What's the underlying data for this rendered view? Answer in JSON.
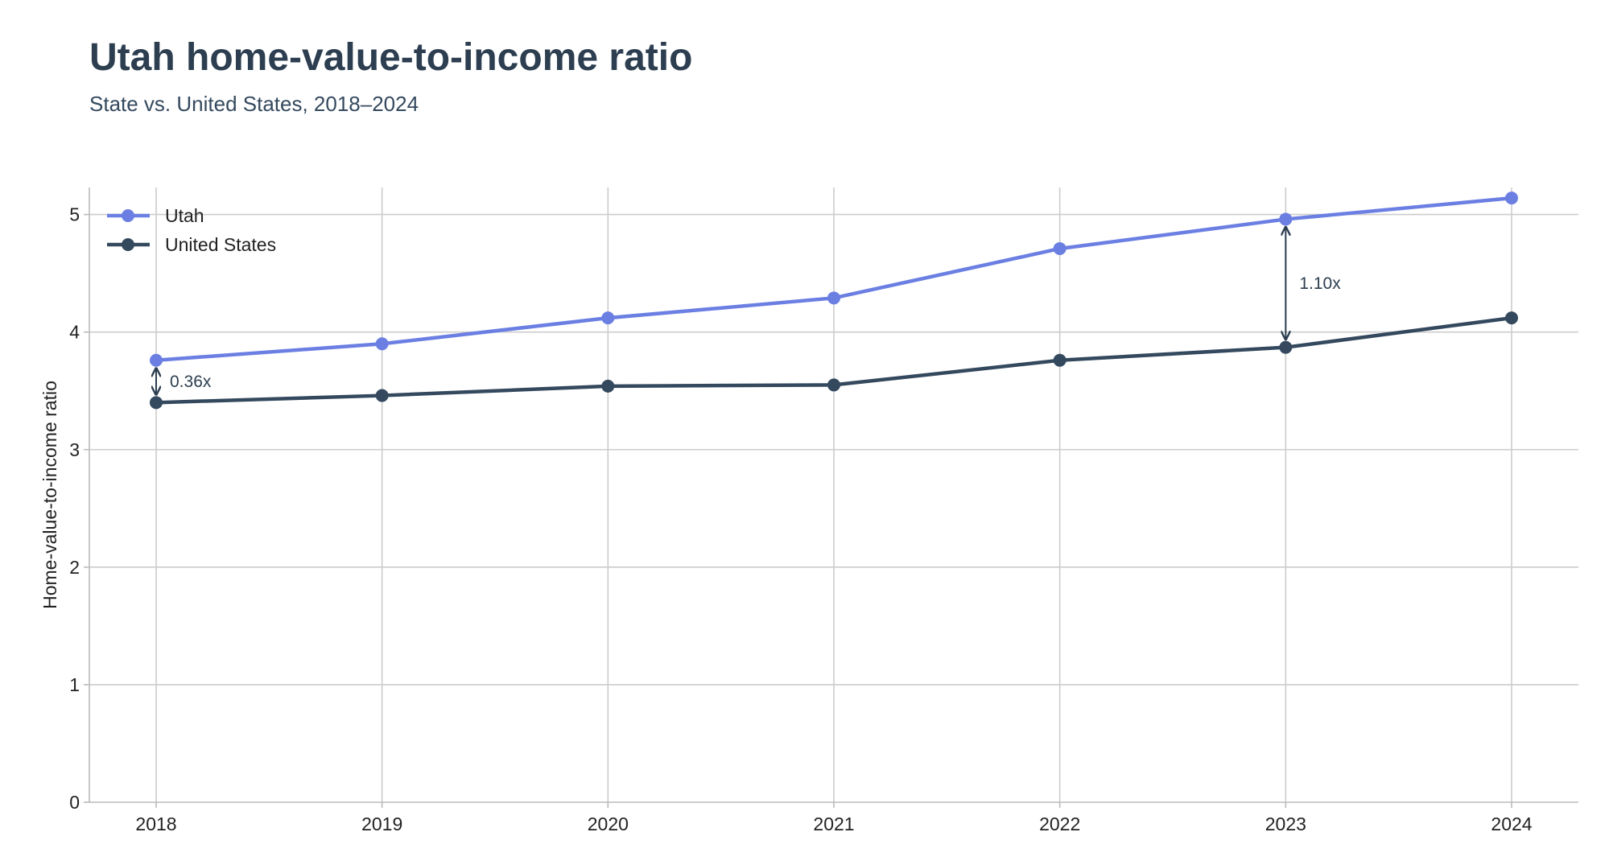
{
  "header": {
    "title": "Utah home-value-to-income ratio",
    "subtitle": "State vs. United States, 2018–2024"
  },
  "chart_data": {
    "type": "line",
    "title": "Utah home-value-to-income ratio",
    "subtitle": "State vs. United States, 2018–2024",
    "xlabel": "",
    "ylabel": "Home-value-to-income ratio",
    "x": [
      2018,
      2019,
      2020,
      2021,
      2022,
      2023,
      2024
    ],
    "x_tick_labels": [
      "2018",
      "2019",
      "2020",
      "2021",
      "2022",
      "2023",
      "2024"
    ],
    "ylim": [
      0,
      5.23
    ],
    "y_ticks": [
      0,
      1,
      2,
      3,
      4,
      5
    ],
    "y_tick_labels": [
      "0",
      "1",
      "2",
      "3",
      "4",
      "5"
    ],
    "grid": true,
    "legend_position": "top-left",
    "series": [
      {
        "name": "Utah",
        "color": "#6b7fe3",
        "values": [
          3.76,
          3.9,
          4.12,
          4.29,
          4.71,
          4.96,
          5.14
        ]
      },
      {
        "name": "United States",
        "color": "#34495e",
        "values": [
          3.4,
          3.46,
          3.54,
          3.55,
          3.76,
          3.87,
          4.12
        ]
      }
    ],
    "annotations": [
      {
        "x": 2018,
        "from": 3.4,
        "to": 3.76,
        "label": "0.36x"
      },
      {
        "x": 2023,
        "from": 3.87,
        "to": 4.96,
        "label": "1.10x"
      }
    ]
  }
}
